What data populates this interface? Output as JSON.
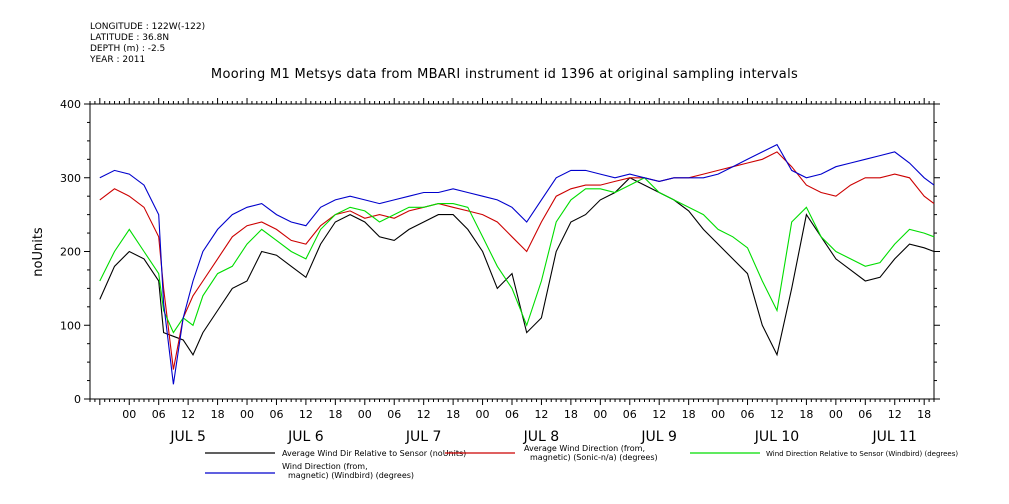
{
  "meta": {
    "longitude": "LONGITUDE : 122W(-122)",
    "latitude": "LATITUDE : 36.8N",
    "depth": "DEPTH (m) : -2.5",
    "year": "YEAR : 2011"
  },
  "colors": {
    "black": "#000000",
    "red": "#cc0000",
    "green": "#00dd00",
    "blue": "#0000cc"
  },
  "chart_data": {
    "type": "line",
    "title": "Mooring M1 Metsys data from MBARI instrument id 1396 at original sampling intervals",
    "ylabel": "noUnits",
    "ylim": [
      0,
      400
    ],
    "yticks": [
      0,
      100,
      200,
      300,
      400
    ],
    "xlim_hours": [
      -8,
      164
    ],
    "hour_ticks": [
      "00",
      "06",
      "12",
      "18",
      "00",
      "06",
      "12",
      "18",
      "00",
      "06",
      "12",
      "18",
      "00",
      "06",
      "12",
      "18",
      "00",
      "06",
      "12",
      "18",
      "00",
      "06",
      "12",
      "18",
      "00",
      "06",
      "12",
      "18"
    ],
    "day_labels": [
      "JUL  5",
      "JUL  6",
      "JUL  7",
      "JUL  8",
      "JUL  9",
      "JUL 10",
      "JUL 11"
    ],
    "series": [
      {
        "name": "Average Wind Dir Relative to Sensor (noUnits)",
        "color": "#000000",
        "x": [
          -6,
          -3,
          0,
          3,
          6,
          7,
          9,
          11,
          13,
          15,
          18,
          21,
          24,
          27,
          30,
          33,
          36,
          39,
          42,
          45,
          48,
          51,
          54,
          57,
          60,
          63,
          66,
          69,
          72,
          75,
          78,
          81,
          84,
          87,
          90,
          93,
          96,
          99,
          102,
          105,
          108,
          111,
          114,
          117,
          120,
          123,
          126,
          129,
          132,
          135,
          138,
          141,
          144,
          147,
          150,
          153,
          156,
          159,
          162,
          164
        ],
        "y": [
          135,
          180,
          200,
          190,
          160,
          90,
          85,
          80,
          60,
          90,
          120,
          150,
          160,
          200,
          195,
          180,
          165,
          210,
          240,
          250,
          240,
          220,
          215,
          230,
          240,
          250,
          250,
          230,
          200,
          150,
          170,
          90,
          110,
          200,
          240,
          250,
          270,
          280,
          300,
          290,
          280,
          270,
          255,
          230,
          210,
          190,
          170,
          100,
          60,
          150,
          250,
          220,
          190,
          175,
          160,
          165,
          190,
          210,
          205,
          200
        ]
      },
      {
        "name": "Average Wind Direction (from, magnetic) (Sonic-n/a) (degrees)",
        "color": "#cc0000",
        "x": [
          -6,
          -3,
          0,
          3,
          6,
          7,
          9,
          11,
          13,
          15,
          18,
          21,
          24,
          27,
          30,
          33,
          36,
          39,
          42,
          45,
          48,
          51,
          54,
          57,
          60,
          63,
          66,
          69,
          72,
          75,
          78,
          81,
          84,
          87,
          90,
          93,
          96,
          99,
          102,
          105,
          108,
          111,
          114,
          117,
          120,
          123,
          126,
          129,
          132,
          135,
          138,
          141,
          144,
          147,
          150,
          153,
          156,
          159,
          162,
          164
        ],
        "y": [
          270,
          285,
          275,
          260,
          220,
          150,
          40,
          110,
          140,
          160,
          190,
          220,
          235,
          240,
          230,
          215,
          210,
          235,
          250,
          255,
          245,
          250,
          245,
          255,
          260,
          265,
          260,
          255,
          250,
          240,
          220,
          200,
          240,
          275,
          285,
          290,
          290,
          295,
          300,
          300,
          295,
          300,
          300,
          305,
          310,
          315,
          320,
          325,
          335,
          315,
          290,
          280,
          275,
          290,
          300,
          300,
          305,
          300,
          275,
          265
        ]
      },
      {
        "name": "Wind Direction Relative to Sensor (Windbird) (degrees)",
        "color": "#00dd00",
        "x": [
          -6,
          -3,
          0,
          3,
          6,
          7,
          9,
          11,
          13,
          15,
          18,
          21,
          24,
          27,
          30,
          33,
          36,
          39,
          42,
          45,
          48,
          51,
          54,
          57,
          60,
          63,
          66,
          69,
          72,
          75,
          78,
          81,
          84,
          87,
          90,
          93,
          96,
          99,
          102,
          105,
          108,
          111,
          114,
          117,
          120,
          123,
          126,
          129,
          132,
          135,
          138,
          141,
          144,
          147,
          150,
          153,
          156,
          159,
          162,
          164
        ],
        "y": [
          160,
          200,
          230,
          200,
          170,
          120,
          90,
          110,
          100,
          140,
          170,
          180,
          210,
          230,
          215,
          200,
          190,
          230,
          250,
          260,
          255,
          240,
          250,
          260,
          260,
          265,
          265,
          260,
          220,
          180,
          150,
          100,
          160,
          240,
          270,
          285,
          285,
          280,
          290,
          300,
          280,
          270,
          260,
          250,
          230,
          220,
          205,
          160,
          120,
          240,
          260,
          220,
          200,
          190,
          180,
          185,
          210,
          230,
          225,
          220
        ]
      },
      {
        "name": "Wind Direction (from, magnetic) (Windbird) (degrees)",
        "color": "#0000cc",
        "x": [
          -6,
          -3,
          0,
          3,
          6,
          7,
          9,
          11,
          13,
          15,
          18,
          21,
          24,
          27,
          30,
          33,
          36,
          39,
          42,
          45,
          48,
          51,
          54,
          57,
          60,
          63,
          66,
          69,
          72,
          75,
          78,
          81,
          84,
          87,
          90,
          93,
          96,
          99,
          102,
          105,
          108,
          111,
          114,
          117,
          120,
          123,
          126,
          129,
          132,
          135,
          138,
          141,
          144,
          147,
          150,
          153,
          156,
          159,
          162,
          164
        ],
        "y": [
          300,
          310,
          305,
          290,
          250,
          130,
          20,
          110,
          160,
          200,
          230,
          250,
          260,
          265,
          250,
          240,
          235,
          260,
          270,
          275,
          270,
          265,
          270,
          275,
          280,
          280,
          285,
          280,
          275,
          270,
          260,
          240,
          270,
          300,
          310,
          310,
          305,
          300,
          305,
          300,
          295,
          300,
          300,
          300,
          305,
          315,
          325,
          335,
          345,
          310,
          300,
          305,
          315,
          320,
          325,
          330,
          335,
          320,
          300,
          290
        ]
      }
    ]
  }
}
